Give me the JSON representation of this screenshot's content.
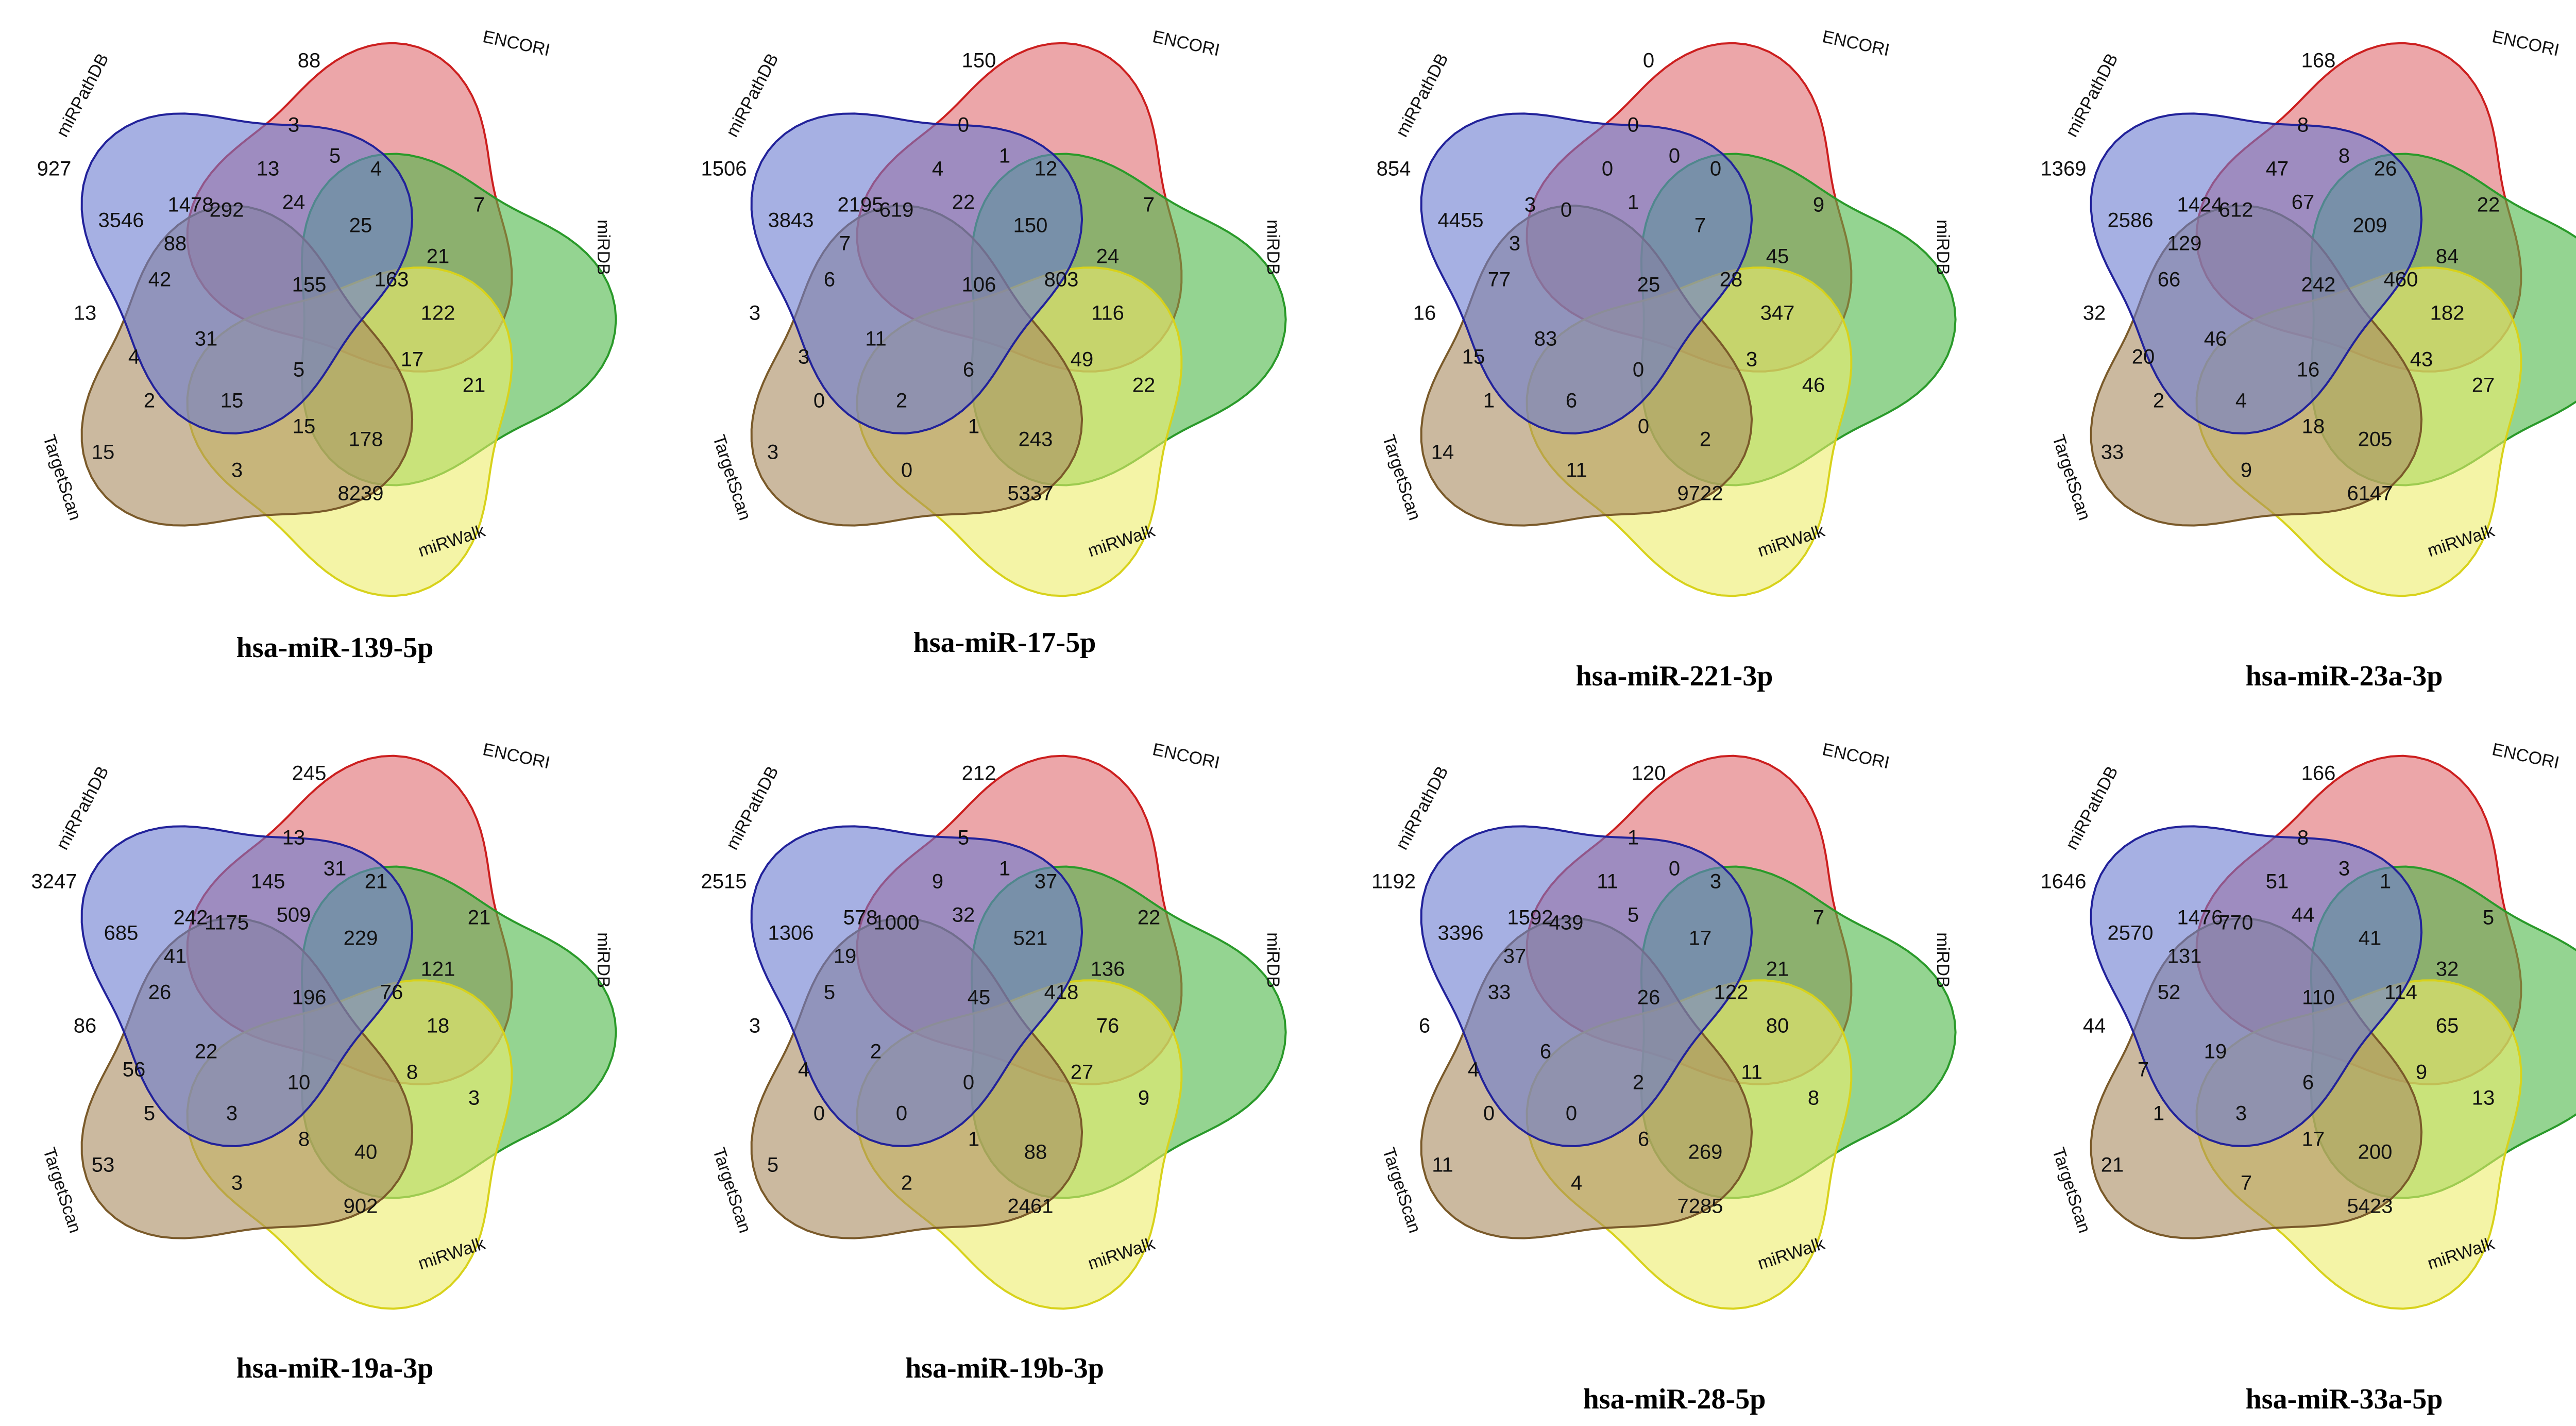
{
  "set_names": [
    "ENCORI",
    "miRDB",
    "miRWalk",
    "TargetScan",
    "miRPathDB"
  ],
  "set_colors": [
    "#e06a6f",
    "#4db848",
    "#ecec6a",
    "#a98b5f",
    "#6b7bd1"
  ],
  "set_stroke_colors": [
    "#cc1f1f",
    "#2a9a2a",
    "#d8d21b",
    "#7a5a2a",
    "#22229a"
  ],
  "panels": [
    {
      "title": "hsa-miR-139-5p",
      "counts": [
        "88",
        "292",
        "3",
        "13",
        "1478",
        "5",
        "24",
        "4",
        "25",
        "7",
        "21",
        "163",
        "155",
        "88",
        "3546",
        "927",
        "42",
        "13",
        "31",
        "4",
        "2",
        "15",
        "5",
        "15",
        "178",
        "8239",
        "3",
        "15",
        "17",
        "122",
        "21"
      ]
    },
    {
      "title": "hsa-miR-17-5p",
      "counts": [
        "150",
        "619",
        "0",
        "4",
        "2195",
        "1",
        "22",
        "12",
        "150",
        "7",
        "24",
        "803",
        "106",
        "7",
        "3843",
        "1506",
        "6",
        "3",
        "11",
        "3",
        "0",
        "2",
        "6",
        "1",
        "243",
        "5337",
        "0",
        "3",
        "49",
        "116",
        "22"
      ]
    },
    {
      "title": "hsa-miR-221-3p",
      "counts": [
        "0",
        "0",
        "0",
        "0",
        "3",
        "0",
        "1",
        "0",
        "7",
        "9",
        "45",
        "28",
        "25",
        "3",
        "4455",
        "854",
        "77",
        "16",
        "83",
        "15",
        "1",
        "6",
        "0",
        "0",
        "2",
        "9722",
        "11",
        "14",
        "3",
        "347",
        "46"
      ]
    },
    {
      "title": "hsa-miR-23a-3p",
      "counts": [
        "168",
        "612",
        "8",
        "47",
        "1424",
        "8",
        "67",
        "26",
        "209",
        "22",
        "84",
        "460",
        "242",
        "129",
        "2586",
        "1369",
        "66",
        "32",
        "46",
        "20",
        "2",
        "4",
        "16",
        "18",
        "205",
        "6147",
        "9",
        "33",
        "43",
        "182",
        "27"
      ]
    },
    {
      "title": "hsa-miR-19a-3p",
      "counts": [
        "245",
        "1175",
        "13",
        "145",
        "242",
        "31",
        "509",
        "21",
        "229",
        "21",
        "121",
        "76",
        "196",
        "41",
        "685",
        "3247",
        "26",
        "86",
        "22",
        "56",
        "5",
        "3",
        "10",
        "8",
        "40",
        "902",
        "3",
        "53",
        "8",
        "18",
        "3"
      ]
    },
    {
      "title": "hsa-miR-19b-3p",
      "counts": [
        "212",
        "1000",
        "5",
        "9",
        "578",
        "1",
        "32",
        "37",
        "521",
        "22",
        "136",
        "418",
        "45",
        "19",
        "1306",
        "2515",
        "5",
        "3",
        "2",
        "4",
        "0",
        "0",
        "0",
        "1",
        "88",
        "2461",
        "2",
        "5",
        "27",
        "76",
        "9"
      ]
    },
    {
      "title": "hsa-miR-28-5p",
      "counts": [
        "120",
        "439",
        "1",
        "11",
        "1592",
        "0",
        "5",
        "3",
        "17",
        "7",
        "21",
        "122",
        "26",
        "37",
        "3396",
        "1192",
        "33",
        "6",
        "6",
        "4",
        "0",
        "0",
        "2",
        "6",
        "269",
        "7285",
        "4",
        "11",
        "11",
        "80",
        "8"
      ]
    },
    {
      "title": "hsa-miR-33a-5p",
      "counts": [
        "166",
        "770",
        "8",
        "51",
        "1476",
        "3",
        "44",
        "1",
        "41",
        "5",
        "32",
        "114",
        "110",
        "131",
        "2570",
        "1646",
        "52",
        "44",
        "19",
        "7",
        "1",
        "3",
        "6",
        "17",
        "200",
        "5423",
        "7",
        "21",
        "9",
        "65",
        "13"
      ]
    }
  ]
}
